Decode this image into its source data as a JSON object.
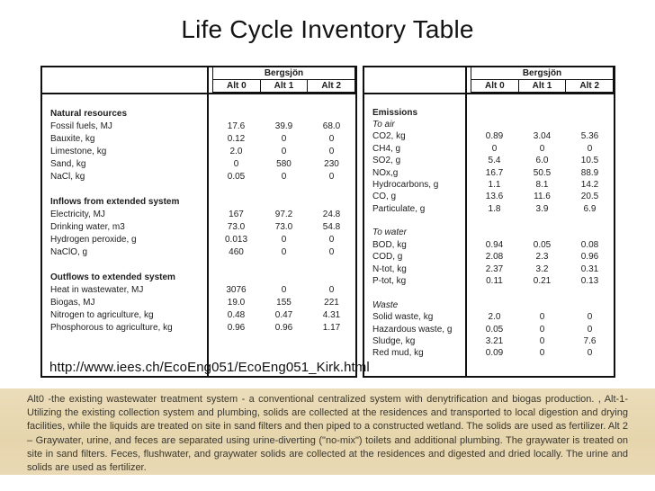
{
  "slide": {
    "title": "Life Cycle Inventory Table",
    "source_url": "http://www.iees.ch/EcoEng051/EcoEng051_Kirk.html",
    "notes": "Alt0 -the existing wastewater treatment system - a conventional centralized system with denytrification and biogas production. , Alt-1-Utilizing the existing collection system and plumbing, solids are collected at the residences and transported to local digestion and drying facilities, while the liquids are treated on site in sand filters and then piped to a constructed wetland. The solids are used as fertilizer. Alt 2 – Graywater, urine, and feces are separated using urine-diverting (\"no-mix\") toilets and additional plumbing. The graywater is treated on site in sand filters. Feces, flushwater, and graywater solids are collected at the residences and digested and dried locally. The urine and solids are used as fertilizer."
  },
  "colors": {
    "notes_background": "#e8d8b0",
    "table_border": "#101010",
    "text": "#1a1a1a"
  },
  "left_table": {
    "group_header": "Bergsjön",
    "columns": [
      "Alt 0",
      "Alt 1",
      "Alt 2"
    ],
    "rows": [
      {
        "type": "blank"
      },
      {
        "type": "section",
        "label": "Natural resources"
      },
      {
        "type": "data",
        "label": "Fossil fuels, MJ",
        "values": [
          "17.6",
          "39.9",
          "68.0"
        ]
      },
      {
        "type": "data",
        "label": "Bauxite, kg",
        "values": [
          "0.12",
          "0",
          "0"
        ]
      },
      {
        "type": "data",
        "label": "Limestone, kg",
        "values": [
          "2.0",
          "0",
          "0"
        ]
      },
      {
        "type": "data",
        "label": "Sand, kg",
        "values": [
          "0",
          "580",
          "230"
        ]
      },
      {
        "type": "data",
        "label": "NaCl, kg",
        "values": [
          "0.05",
          "0",
          "0"
        ]
      },
      {
        "type": "blank"
      },
      {
        "type": "section",
        "label": "Inflows from extended system"
      },
      {
        "type": "data",
        "label": "Electricity, MJ",
        "values": [
          "167",
          "97.2",
          "24.8"
        ]
      },
      {
        "type": "data",
        "label": "Drinking water, m3",
        "values": [
          "73.0",
          "73.0",
          "54.8"
        ]
      },
      {
        "type": "data",
        "label": "Hydrogen peroxide, g",
        "values": [
          "0.013",
          "0",
          "0"
        ]
      },
      {
        "type": "data",
        "label": "NaClO, g",
        "values": [
          "460",
          "0",
          "0"
        ]
      },
      {
        "type": "blank"
      },
      {
        "type": "section",
        "label": "Outflows to extended system"
      },
      {
        "type": "data",
        "label": "Heat in wastewater, MJ",
        "values": [
          "3076",
          "0",
          "0"
        ]
      },
      {
        "type": "data",
        "label": "Biogas, MJ",
        "values": [
          "19.0",
          "155",
          "221"
        ]
      },
      {
        "type": "data",
        "label": "Nitrogen to agriculture, kg",
        "values": [
          "0.48",
          "0.47",
          "4.31"
        ]
      },
      {
        "type": "data",
        "label": "Phosphorous to agriculture, kg",
        "values": [
          "0.96",
          "0.96",
          "1.17"
        ]
      }
    ]
  },
  "right_table": {
    "group_header": "Bergsjön",
    "columns": [
      "Alt 0",
      "Alt 1",
      "Alt 2"
    ],
    "rows": [
      {
        "type": "blank"
      },
      {
        "type": "section",
        "label": "Emissions"
      },
      {
        "type": "subsection",
        "label": "To air"
      },
      {
        "type": "data",
        "label": "CO2, kg",
        "values": [
          "0.89",
          "3.04",
          "5.36"
        ]
      },
      {
        "type": "data",
        "label": "CH4, g",
        "values": [
          "0",
          "0",
          "0"
        ]
      },
      {
        "type": "data",
        "label": "SO2, g",
        "values": [
          "5.4",
          "6.0",
          "10.5"
        ]
      },
      {
        "type": "data",
        "label": "NOx,g",
        "values": [
          "16.7",
          "50.5",
          "88.9"
        ]
      },
      {
        "type": "data",
        "label": "Hydrocarbons, g",
        "values": [
          "1.1",
          "8.1",
          "14.2"
        ]
      },
      {
        "type": "data",
        "label": "CO, g",
        "values": [
          "13.6",
          "11.6",
          "20.5"
        ]
      },
      {
        "type": "data",
        "label": "Particulate, g",
        "values": [
          "1.8",
          "3.9",
          "6.9"
        ]
      },
      {
        "type": "blank"
      },
      {
        "type": "subsection",
        "label": "To water"
      },
      {
        "type": "data",
        "label": "BOD, kg",
        "values": [
          "0.94",
          "0.05",
          "0.08"
        ]
      },
      {
        "type": "data",
        "label": "COD, g",
        "values": [
          "2.08",
          "2.3",
          "0.96"
        ]
      },
      {
        "type": "data",
        "label": "N-tot, kg",
        "values": [
          "2.37",
          "3.2",
          "0.31"
        ]
      },
      {
        "type": "data",
        "label": "P-tot, kg",
        "values": [
          "0.11",
          "0.21",
          "0.13"
        ]
      },
      {
        "type": "blank"
      },
      {
        "type": "subsection",
        "label": "Waste"
      },
      {
        "type": "data",
        "label": "Solid waste, kg",
        "values": [
          "2.0",
          "0",
          "0"
        ]
      },
      {
        "type": "data",
        "label": "Hazardous waste, g",
        "values": [
          "0.05",
          "0",
          "0"
        ]
      },
      {
        "type": "data",
        "label": "Sludge, kg",
        "values": [
          "3.21",
          "0",
          "7.6"
        ]
      },
      {
        "type": "data",
        "label": "Red mud, kg",
        "values": [
          "0.09",
          "0",
          "0"
        ]
      }
    ]
  }
}
